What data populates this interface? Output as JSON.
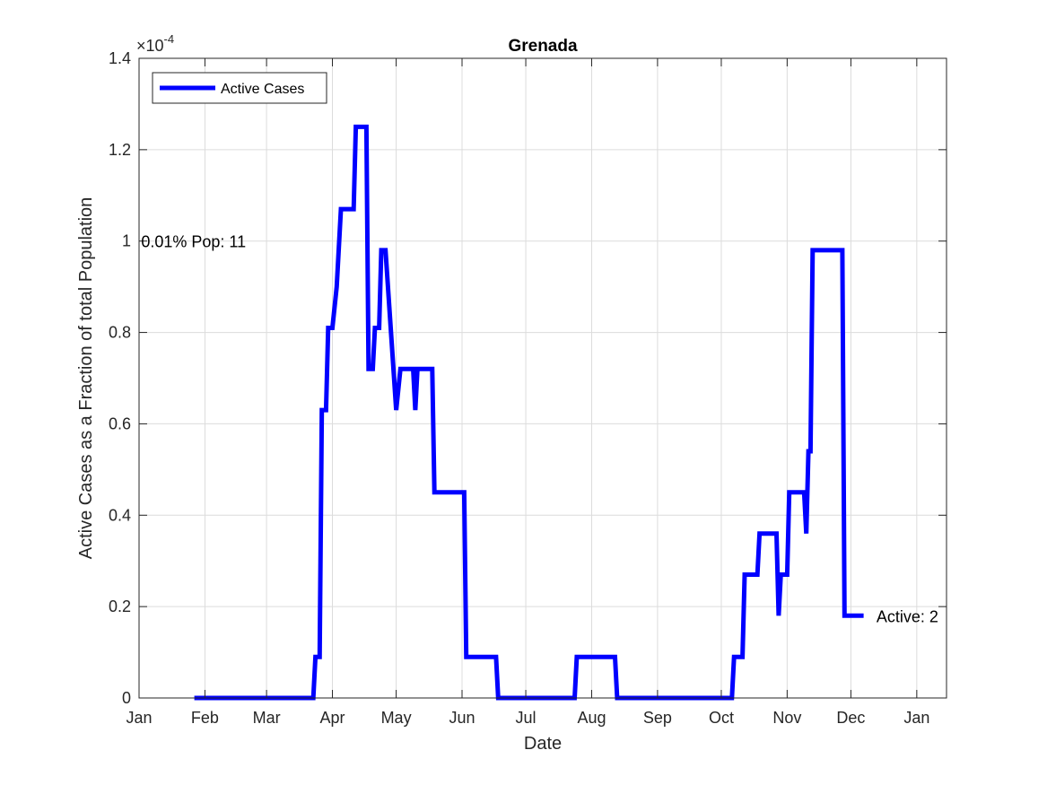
{
  "chart_data": {
    "type": "line",
    "title": "Grenada",
    "xlabel": "Date",
    "ylabel": "Active Cases as a Fraction of total Population",
    "y_exponent_label": "×10",
    "y_exponent_power": "-4",
    "y_multiplier": 0.0001,
    "ylim": [
      0,
      1.4
    ],
    "xlim_days": [
      0,
      380
    ],
    "x_ticks": [
      {
        "label": "Jan",
        "day": 0
      },
      {
        "label": "Feb",
        "day": 31
      },
      {
        "label": "Mar",
        "day": 60
      },
      {
        "label": "Apr",
        "day": 91
      },
      {
        "label": "May",
        "day": 121
      },
      {
        "label": "Jun",
        "day": 152
      },
      {
        "label": "Jul",
        "day": 182
      },
      {
        "label": "Aug",
        "day": 213
      },
      {
        "label": "Sep",
        "day": 244
      },
      {
        "label": "Oct",
        "day": 274
      },
      {
        "label": "Nov",
        "day": 305
      },
      {
        "label": "Dec",
        "day": 335
      },
      {
        "label": "Jan",
        "day": 366
      }
    ],
    "y_ticks": [
      {
        "label": "0",
        "value": 0
      },
      {
        "label": "0.2",
        "value": 0.2
      },
      {
        "label": "0.4",
        "value": 0.4
      },
      {
        "label": "0.6",
        "value": 0.6
      },
      {
        "label": "0.8",
        "value": 0.8
      },
      {
        "label": "1",
        "value": 1.0
      },
      {
        "label": "1.2",
        "value": 1.2
      },
      {
        "label": "1.4",
        "value": 1.4
      }
    ],
    "grid": true,
    "legend_position": "top-left",
    "series": [
      {
        "name": "Active Cases",
        "color": "#0000ff",
        "x": [
          26,
          82,
          83,
          85,
          86,
          88,
          89,
          91,
          93,
          95,
          96,
          98,
          101,
          102,
          104,
          105,
          107,
          108,
          109,
          110,
          111,
          113,
          114,
          116,
          121,
          123,
          129,
          130,
          131,
          132,
          138,
          139,
          140,
          141,
          142,
          143,
          144,
          145,
          146,
          147,
          148,
          149,
          150,
          151,
          152,
          153,
          154,
          155,
          156,
          157,
          158,
          159,
          160,
          161,
          162,
          163,
          164,
          165,
          166,
          167,
          168,
          169,
          170,
          171,
          172,
          173,
          174,
          175,
          176,
          177,
          178,
          179,
          180,
          181,
          182,
          183,
          184,
          185,
          186,
          187,
          188,
          189,
          190,
          191,
          192,
          193,
          194,
          195,
          196,
          197,
          198,
          199,
          200,
          201,
          202,
          203,
          204,
          205,
          206,
          207,
          208,
          209,
          210,
          211,
          212,
          213,
          214,
          215,
          216,
          217,
          218,
          219,
          220,
          221,
          222,
          223,
          224,
          225,
          226,
          227,
          228,
          229,
          230,
          231,
          232,
          233,
          234,
          235,
          236,
          237,
          238,
          239,
          240,
          241,
          242,
          243,
          244,
          245,
          246,
          247,
          248,
          249,
          250,
          251,
          252,
          253,
          254,
          255,
          256,
          257,
          258,
          259,
          260,
          261,
          262,
          263,
          264,
          265,
          266,
          267,
          268,
          269,
          270,
          271,
          272,
          273,
          274,
          275,
          276,
          277,
          278,
          279,
          280,
          281,
          282,
          283,
          284,
          285,
          286,
          287,
          288,
          289,
          290,
          291,
          292,
          293,
          294,
          295,
          296,
          297,
          298,
          299,
          300,
          301,
          302,
          303,
          304,
          305,
          306,
          307,
          308,
          309,
          310,
          311,
          312,
          313,
          314,
          315,
          316,
          317,
          318,
          319,
          320,
          321,
          322,
          323,
          324,
          325,
          326,
          327,
          328,
          329,
          330,
          331,
          332,
          333,
          334,
          335,
          336,
          337,
          338,
          339,
          340,
          341
        ],
        "y": [
          0,
          0,
          0.09,
          0.09,
          0.63,
          0.63,
          0.81,
          0.81,
          0.9,
          1.07,
          1.07,
          1.07,
          1.07,
          1.25,
          1.25,
          1.25,
          1.25,
          0.72,
          0.72,
          0.72,
          0.81,
          0.81,
          0.98,
          0.98,
          0.63,
          0.72,
          0.72,
          0.63,
          0.72,
          0.72,
          0.72,
          0.45,
          0.45,
          0.45,
          0.45,
          0.45,
          0.45,
          0.45,
          0.45,
          0.45,
          0.45,
          0.45,
          0.45,
          0.45,
          0.45,
          0.45,
          0.09,
          0.09,
          0.09,
          0.09,
          0.09,
          0.09,
          0.09,
          0.09,
          0.09,
          0.09,
          0.09,
          0.09,
          0.09,
          0.09,
          0.09,
          0,
          0,
          0,
          0,
          0,
          0,
          0,
          0,
          0,
          0,
          0,
          0,
          0,
          0,
          0,
          0,
          0,
          0,
          0,
          0,
          0,
          0,
          0,
          0,
          0,
          0,
          0,
          0,
          0,
          0,
          0,
          0,
          0,
          0,
          0,
          0,
          0,
          0.09,
          0.09,
          0.09,
          0.09,
          0.09,
          0.09,
          0.09,
          0.09,
          0.09,
          0.09,
          0.09,
          0.09,
          0.09,
          0.09,
          0.09,
          0.09,
          0.09,
          0.09,
          0.09,
          0,
          0,
          0,
          0,
          0,
          0,
          0,
          0,
          0,
          0,
          0,
          0,
          0,
          0,
          0,
          0,
          0,
          0,
          0,
          0,
          0,
          0,
          0,
          0,
          0,
          0,
          0,
          0,
          0,
          0,
          0,
          0,
          0,
          0,
          0,
          0,
          0,
          0,
          0,
          0,
          0,
          0,
          0,
          0,
          0,
          0,
          0,
          0,
          0,
          0,
          0,
          0,
          0,
          0,
          0,
          0.09,
          0.09,
          0.09,
          0.09,
          0.09,
          0.27,
          0.27,
          0.27,
          0.27,
          0.27,
          0.27,
          0.27,
          0.36,
          0.36,
          0.36,
          0.36,
          0.36,
          0.36,
          0.36,
          0.36,
          0.36,
          0.18,
          0.27,
          0.27,
          0.27,
          0.27,
          0.45,
          0.45,
          0.45,
          0.45,
          0.45,
          0.45,
          0.45,
          0.45,
          0.36,
          0.54,
          0.54,
          0.98,
          0.98,
          0.98,
          0.98,
          0.98,
          0.98,
          0.98,
          0.98,
          0.98,
          0.98,
          0.98,
          0.98,
          0.98,
          0.98,
          0.98,
          0.18,
          0.18,
          0.18,
          0.18,
          0.18,
          0.18,
          0.18,
          0.18,
          0.18,
          0.18
        ]
      }
    ],
    "annotations": [
      {
        "text": "0.01% Pop: 11",
        "day": 1,
        "value": 1.0
      },
      {
        "text": "Active: 2",
        "day": 347,
        "value": 0.18
      }
    ]
  }
}
